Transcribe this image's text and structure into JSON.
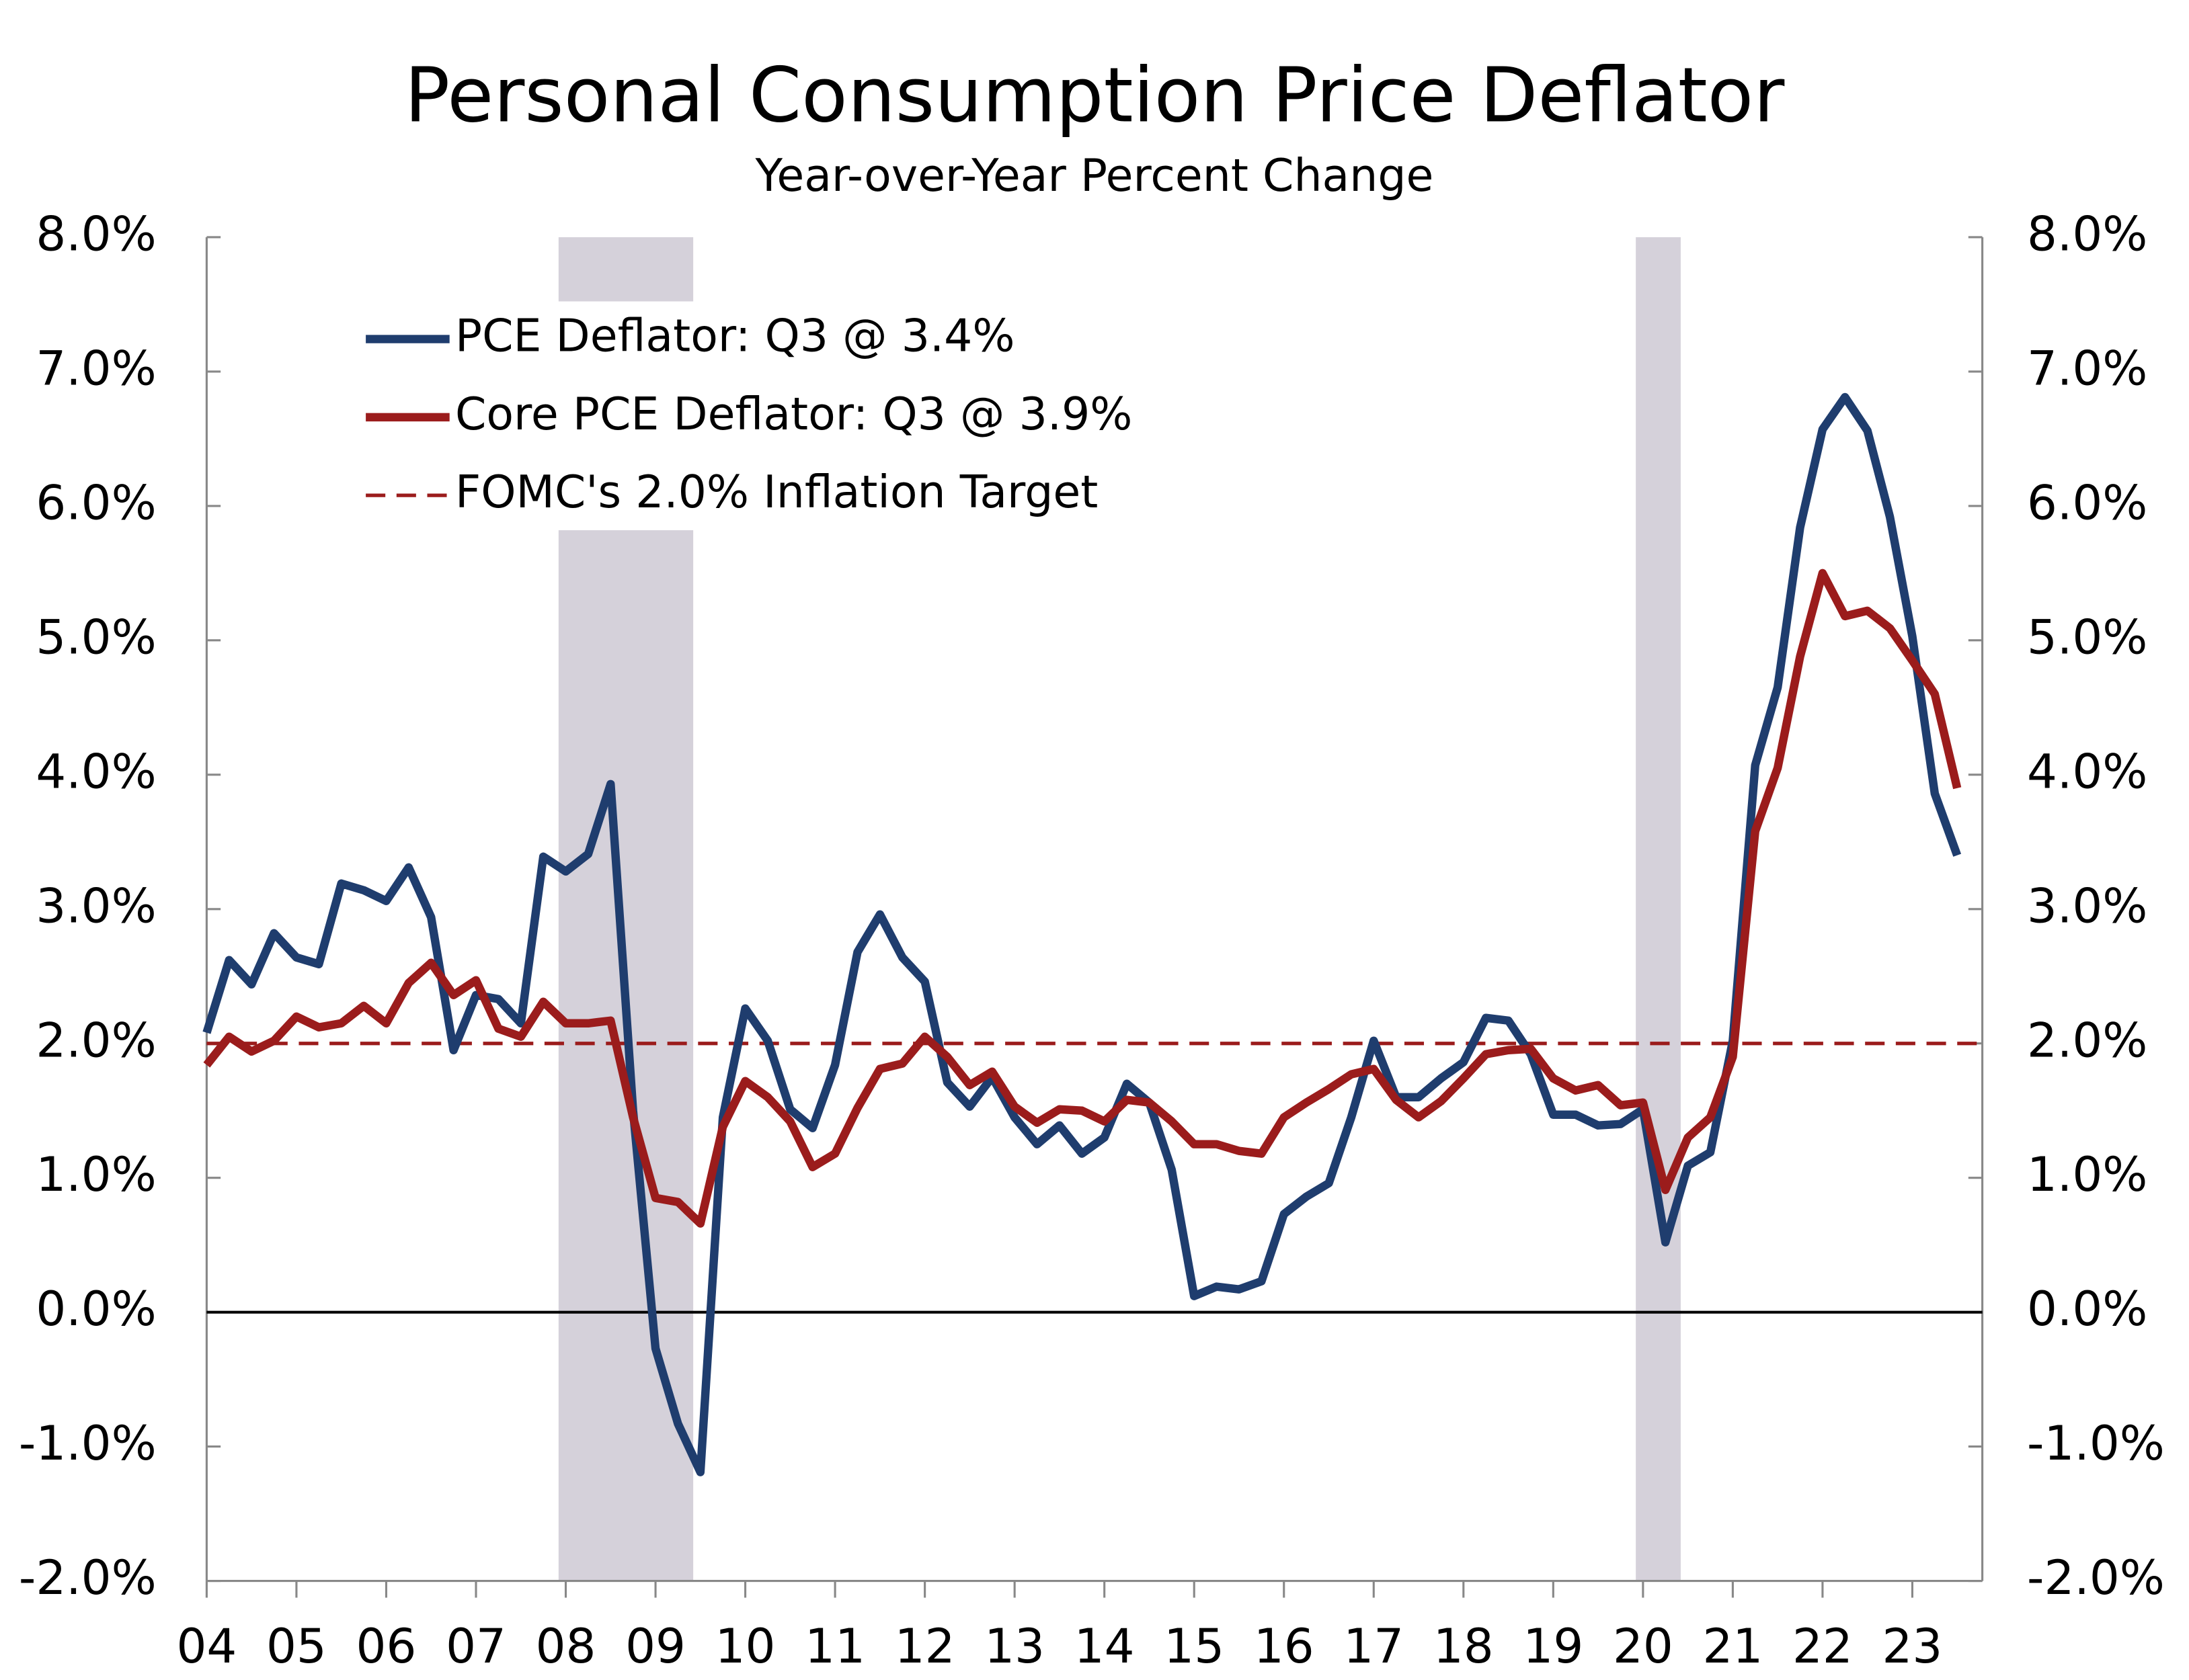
{
  "chart_data": {
    "type": "line",
    "title": "Personal Consumption Price Deflator",
    "subtitle": "Year-over-Year Percent Change",
    "x": [
      2004,
      2004.25,
      2004.5,
      2004.75,
      2005,
      2005.25,
      2005.5,
      2005.75,
      2006,
      2006.25,
      2006.5,
      2006.75,
      2007,
      2007.25,
      2007.5,
      2007.75,
      2008,
      2008.25,
      2008.5,
      2008.75,
      2009,
      2009.25,
      2009.5,
      2009.75,
      2010,
      2010.25,
      2010.5,
      2010.75,
      2011,
      2011.25,
      2011.5,
      2011.75,
      2012,
      2012.25,
      2012.5,
      2012.75,
      2013,
      2013.25,
      2013.5,
      2013.75,
      2014,
      2014.25,
      2014.5,
      2014.75,
      2015,
      2015.25,
      2015.5,
      2015.75,
      2016,
      2016.25,
      2016.5,
      2016.75,
      2017,
      2017.25,
      2017.5,
      2017.75,
      2018,
      2018.25,
      2018.5,
      2018.75,
      2019,
      2019.25,
      2019.5,
      2019.75,
      2020,
      2020.25,
      2020.5,
      2020.75,
      2021,
      2021.25,
      2021.5,
      2021.75,
      2022,
      2022.25,
      2022.5,
      2022.75,
      2023,
      2023.25,
      2023.5
    ],
    "series": [
      {
        "name": "PCE Deflator: Q3 @ 3.4%",
        "color": "#1f3d6e",
        "values": [
          2.08,
          2.62,
          2.44,
          2.82,
          2.64,
          2.59,
          3.19,
          3.14,
          3.06,
          3.31,
          2.94,
          1.95,
          2.36,
          2.33,
          2.15,
          3.39,
          3.28,
          3.41,
          3.93,
          1.5,
          -0.27,
          -0.83,
          -1.19,
          1.45,
          2.26,
          2.02,
          1.51,
          1.37,
          1.84,
          2.68,
          2.96,
          2.64,
          2.46,
          1.71,
          1.53,
          1.75,
          1.45,
          1.25,
          1.39,
          1.18,
          1.3,
          1.7,
          1.56,
          1.06,
          0.12,
          0.19,
          0.17,
          0.23,
          0.73,
          0.86,
          0.96,
          1.45,
          2.02,
          1.6,
          1.6,
          1.74,
          1.86,
          2.19,
          2.17,
          1.92,
          1.47,
          1.47,
          1.39,
          1.4,
          1.51,
          0.52,
          1.09,
          1.19,
          2.02,
          4.07,
          4.65,
          5.84,
          6.57,
          6.81,
          6.56,
          5.92,
          5.03,
          3.86,
          3.4
        ]
      },
      {
        "name": "Core PCE Deflator: Q3 @ 3.9%",
        "color": "#9b1c1c",
        "values": [
          1.84,
          2.05,
          1.94,
          2.02,
          2.2,
          2.12,
          2.15,
          2.28,
          2.15,
          2.45,
          2.6,
          2.36,
          2.47,
          2.11,
          2.05,
          2.31,
          2.15,
          2.15,
          2.17,
          1.45,
          0.85,
          0.82,
          0.66,
          1.38,
          1.72,
          1.6,
          1.42,
          1.08,
          1.18,
          1.52,
          1.81,
          1.85,
          2.05,
          1.9,
          1.69,
          1.79,
          1.53,
          1.41,
          1.51,
          1.5,
          1.42,
          1.58,
          1.56,
          1.42,
          1.25,
          1.25,
          1.2,
          1.18,
          1.45,
          1.56,
          1.66,
          1.77,
          1.81,
          1.58,
          1.45,
          1.57,
          1.74,
          1.92,
          1.95,
          1.96,
          1.74,
          1.65,
          1.69,
          1.54,
          1.56,
          0.91,
          1.3,
          1.45,
          1.9,
          3.58,
          4.05,
          4.88,
          5.5,
          5.18,
          5.22,
          5.09,
          4.85,
          4.6,
          3.9
        ]
      }
    ],
    "reference_lines": [
      {
        "name": "FOMC's 2.0% Inflation Target",
        "value": 2,
        "color": "#9b1c1c",
        "dashed": true
      }
    ],
    "shaded_periods": [
      [
        2007.92,
        2009.42
      ],
      [
        2019.92,
        2020.42
      ]
    ],
    "shade_color": "#d5d1da",
    "xlim": [
      2004,
      2023.78
    ],
    "xticks": [
      {
        "value": 2004,
        "label": "04"
      },
      {
        "value": 2005,
        "label": "05"
      },
      {
        "value": 2006,
        "label": "06"
      },
      {
        "value": 2007,
        "label": "07"
      },
      {
        "value": 2008,
        "label": "08"
      },
      {
        "value": 2009,
        "label": "09"
      },
      {
        "value": 2010,
        "label": "10"
      },
      {
        "value": 2011,
        "label": "11"
      },
      {
        "value": 2012,
        "label": "12"
      },
      {
        "value": 2013,
        "label": "13"
      },
      {
        "value": 2014,
        "label": "14"
      },
      {
        "value": 2015,
        "label": "15"
      },
      {
        "value": 2016,
        "label": "16"
      },
      {
        "value": 2017,
        "label": "17"
      },
      {
        "value": 2018,
        "label": "18"
      },
      {
        "value": 2019,
        "label": "19"
      },
      {
        "value": 2020,
        "label": "20"
      },
      {
        "value": 2021,
        "label": "21"
      },
      {
        "value": 2022,
        "label": "22"
      },
      {
        "value": 2023,
        "label": "23"
      }
    ],
    "ylim": [
      -2,
      8
    ],
    "yticks": [
      {
        "value": -2,
        "label": "-2.0%"
      },
      {
        "value": -1,
        "label": "-1.0%"
      },
      {
        "value": 0,
        "label": "0.0%"
      },
      {
        "value": 1,
        "label": "1.0%"
      },
      {
        "value": 2,
        "label": "2.0%"
      },
      {
        "value": 3,
        "label": "3.0%"
      },
      {
        "value": 4,
        "label": "4.0%"
      },
      {
        "value": 5,
        "label": "5.0%"
      },
      {
        "value": 6,
        "label": "6.0%"
      },
      {
        "value": 7,
        "label": "7.0%"
      },
      {
        "value": 8,
        "label": "8.0%"
      }
    ],
    "y2lim": [
      -2,
      8
    ],
    "y2ticks": [
      {
        "value": -2,
        "label": "-2.0%"
      },
      {
        "value": -1,
        "label": "-1.0%"
      },
      {
        "value": 0,
        "label": "0.0%"
      },
      {
        "value": 1,
        "label": "1.0%"
      },
      {
        "value": 2,
        "label": "2.0%"
      },
      {
        "value": 3,
        "label": "3.0%"
      },
      {
        "value": 4,
        "label": "4.0%"
      },
      {
        "value": 5,
        "label": "5.0%"
      },
      {
        "value": 6,
        "label": "6.0%"
      },
      {
        "value": 7,
        "label": "7.0%"
      },
      {
        "value": 8,
        "label": "8.0%"
      }
    ],
    "grid": false
  }
}
